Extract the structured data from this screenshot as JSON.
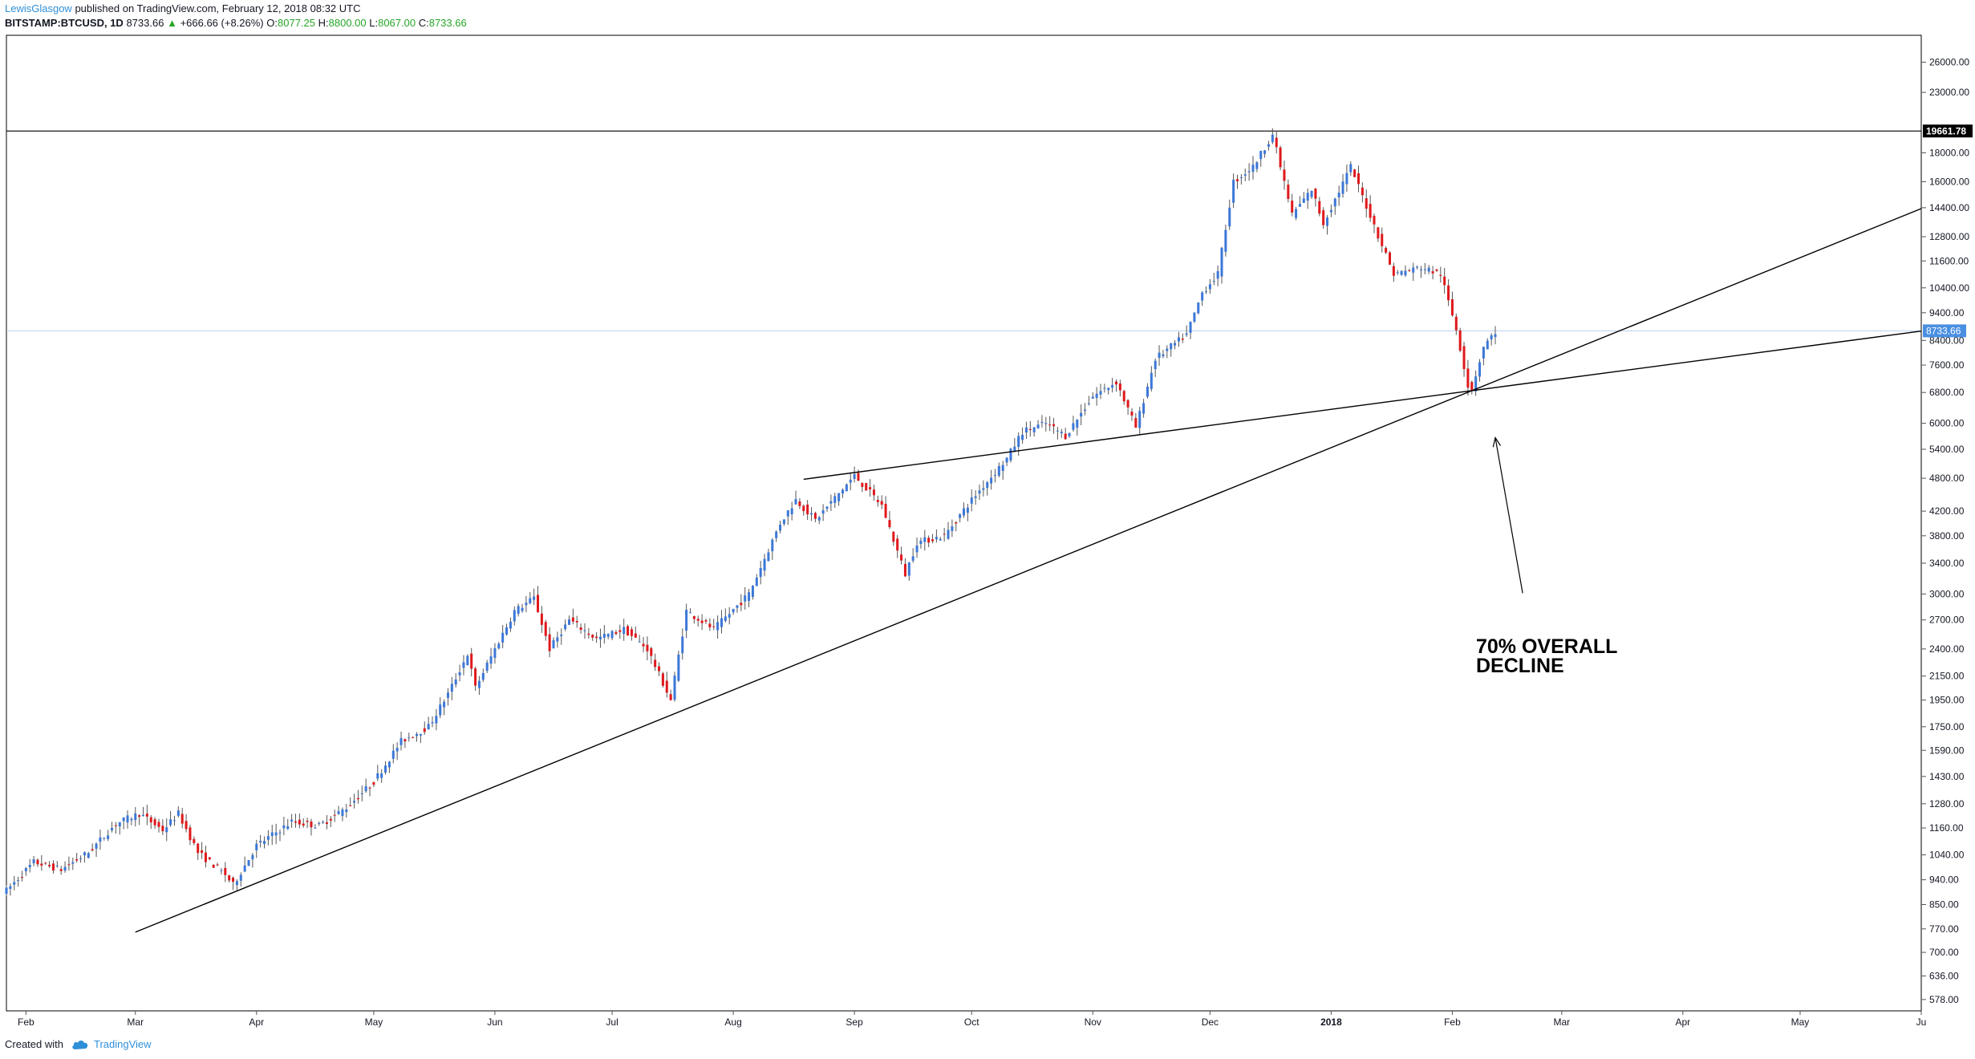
{
  "header": {
    "author": "LewisGlasgow",
    "published_text": "published on TradingView.com, February 12, 2018 08:32 UTC",
    "symbol": "BITSTAMP:BTCUSD, 1D",
    "last": "8733.66",
    "arrow": "▲",
    "change": "+666.66 (+8.26%)",
    "o_label": "O:",
    "o_value": "8077.25",
    "h_label": "H:",
    "h_value": "8800.00",
    "l_label": "L:",
    "l_value": "8067.00",
    "c_label": "C:",
    "c_value": "8733.66"
  },
  "footer": {
    "created_with": "Created with",
    "brand": "TradingView"
  },
  "annotation": {
    "line1": "70% OVERALL",
    "line2": "DECLINE"
  },
  "colors": {
    "up": "#3c78d8",
    "down": "#e0191c",
    "accent": "#2f8fd8",
    "price_tag": "#4a90e2",
    "current_line": "#b8cfee"
  },
  "icons": {
    "tradingview_logo": "cloud-icon",
    "change_arrow": "up-triangle-icon"
  },
  "chart_data": {
    "type": "candlestick",
    "scale": "log",
    "ylim": [
      552,
      29000
    ],
    "x_range": [
      "2017-01-27",
      "2018-06-01"
    ],
    "y_ticks": [
      578,
      636,
      700,
      770,
      850,
      940,
      1040,
      1160,
      1280,
      1430,
      1590,
      1750,
      1950,
      2150,
      2400,
      2700,
      3000,
      3400,
      3800,
      4200,
      4800,
      5400,
      6000,
      6800,
      7600,
      8400,
      9400,
      10400,
      11600,
      12800,
      14400,
      16000,
      18000,
      23000,
      26000
    ],
    "y_tick_labels": [
      "578.00",
      "636.00",
      "700.00",
      "770.00",
      "850.00",
      "940.00",
      "1040.00",
      "1160.00",
      "1280.00",
      "1430.00",
      "1590.00",
      "1750.00",
      "1950.00",
      "2150.00",
      "2400.00",
      "2700.00",
      "3000.00",
      "3400.00",
      "3800.00",
      "4200.00",
      "4800.00",
      "5400.00",
      "6000.00",
      "6800.00",
      "7600.00",
      "8400.00",
      "9400.00",
      "10400.00",
      "11600.00",
      "12800.00",
      "14400.00",
      "16000.00",
      "18000.00",
      "23000.00",
      "26000.00"
    ],
    "x_ticks": [
      {
        "date": "2017-02-01",
        "label": "Feb",
        "bold": false
      },
      {
        "date": "2017-03-01",
        "label": "Mar",
        "bold": false
      },
      {
        "date": "2017-04-01",
        "label": "Apr",
        "bold": false
      },
      {
        "date": "2017-05-01",
        "label": "May",
        "bold": false
      },
      {
        "date": "2017-06-01",
        "label": "Jun",
        "bold": false
      },
      {
        "date": "2017-07-01",
        "label": "Jul",
        "bold": false
      },
      {
        "date": "2017-08-01",
        "label": "Aug",
        "bold": false
      },
      {
        "date": "2017-09-01",
        "label": "Sep",
        "bold": false
      },
      {
        "date": "2017-10-01",
        "label": "Oct",
        "bold": false
      },
      {
        "date": "2017-11-01",
        "label": "Nov",
        "bold": false
      },
      {
        "date": "2017-12-01",
        "label": "Dec",
        "bold": false
      },
      {
        "date": "2018-01-01",
        "label": "2018",
        "bold": true
      },
      {
        "date": "2018-02-01",
        "label": "Feb",
        "bold": false
      },
      {
        "date": "2018-03-01",
        "label": "Mar",
        "bold": false
      },
      {
        "date": "2018-04-01",
        "label": "Apr",
        "bold": false
      },
      {
        "date": "2018-05-01",
        "label": "May",
        "bold": false
      },
      {
        "date": "2018-06-01",
        "label": "Ju",
        "bold": false
      }
    ],
    "price_path": [
      [
        "2017-01-27",
        900
      ],
      [
        "2017-02-03",
        1010
      ],
      [
        "2017-02-10",
        980
      ],
      [
        "2017-02-17",
        1050
      ],
      [
        "2017-02-24",
        1180
      ],
      [
        "2017-03-02",
        1230
      ],
      [
        "2017-03-08",
        1150
      ],
      [
        "2017-03-12",
        1230
      ],
      [
        "2017-03-17",
        1050
      ],
      [
        "2017-03-24",
        960
      ],
      [
        "2017-03-26",
        920
      ],
      [
        "2017-04-01",
        1080
      ],
      [
        "2017-04-10",
        1190
      ],
      [
        "2017-04-17",
        1170
      ],
      [
        "2017-04-24",
        1260
      ],
      [
        "2017-05-01",
        1400
      ],
      [
        "2017-05-08",
        1650
      ],
      [
        "2017-05-15",
        1750
      ],
      [
        "2017-05-20",
        2000
      ],
      [
        "2017-05-25",
        2350
      ],
      [
        "2017-05-27",
        2050
      ],
      [
        "2017-06-01",
        2400
      ],
      [
        "2017-06-06",
        2800
      ],
      [
        "2017-06-11",
        2950
      ],
      [
        "2017-06-15",
        2400
      ],
      [
        "2017-06-20",
        2700
      ],
      [
        "2017-06-27",
        2500
      ],
      [
        "2017-07-04",
        2600
      ],
      [
        "2017-07-10",
        2400
      ],
      [
        "2017-07-16",
        1950
      ],
      [
        "2017-07-20",
        2800
      ],
      [
        "2017-07-27",
        2600
      ],
      [
        "2017-08-05",
        3000
      ],
      [
        "2017-08-13",
        4000
      ],
      [
        "2017-08-17",
        4400
      ],
      [
        "2017-08-22",
        4050
      ],
      [
        "2017-09-01",
        4850
      ],
      [
        "2017-09-08",
        4300
      ],
      [
        "2017-09-14",
        3250
      ],
      [
        "2017-09-17",
        3700
      ],
      [
        "2017-09-24",
        3800
      ],
      [
        "2017-10-01",
        4400
      ],
      [
        "2017-10-10",
        5200
      ],
      [
        "2017-10-14",
        5800
      ],
      [
        "2017-10-20",
        6000
      ],
      [
        "2017-10-25",
        5700
      ],
      [
        "2017-11-01",
        6700
      ],
      [
        "2017-11-07",
        7100
      ],
      [
        "2017-11-12",
        5900
      ],
      [
        "2017-11-17",
        7800
      ],
      [
        "2017-11-25",
        8600
      ],
      [
        "2017-11-29",
        10200
      ],
      [
        "2017-12-03",
        11000
      ],
      [
        "2017-12-07",
        16000
      ],
      [
        "2017-12-12",
        17000
      ],
      [
        "2017-12-17",
        19400
      ],
      [
        "2017-12-22",
        14000
      ],
      [
        "2017-12-27",
        15500
      ],
      [
        "2017-12-30",
        13500
      ],
      [
        "2018-01-06",
        17000
      ],
      [
        "2018-01-10",
        14500
      ],
      [
        "2018-01-17",
        11000
      ],
      [
        "2018-01-24",
        11300
      ],
      [
        "2018-01-29",
        11000
      ],
      [
        "2018-02-02",
        8800
      ],
      [
        "2018-02-05",
        7000
      ],
      [
        "2018-02-06",
        6900
      ],
      [
        "2018-02-09",
        8200
      ],
      [
        "2018-02-12",
        8700
      ]
    ],
    "last_price": 8733.66,
    "max_price": 19661.78,
    "horizontal_lines": [
      19661.78,
      8733.66
    ],
    "trend_lines": [
      {
        "from": [
          "2017-03-01",
          760
        ],
        "through": [
          "2018-02-06",
          6850
        ],
        "to_edge": true
      },
      {
        "from": [
          "2017-08-19",
          4780
        ],
        "through": [
          "2018-02-06",
          6850
        ],
        "to_edge": true
      }
    ],
    "arrow": {
      "from": [
        "2018-02-19",
        3010
      ],
      "to": [
        "2018-02-12",
        5660
      ]
    },
    "price_labels": {
      "max": "19661.78",
      "last": "8733.66"
    }
  }
}
